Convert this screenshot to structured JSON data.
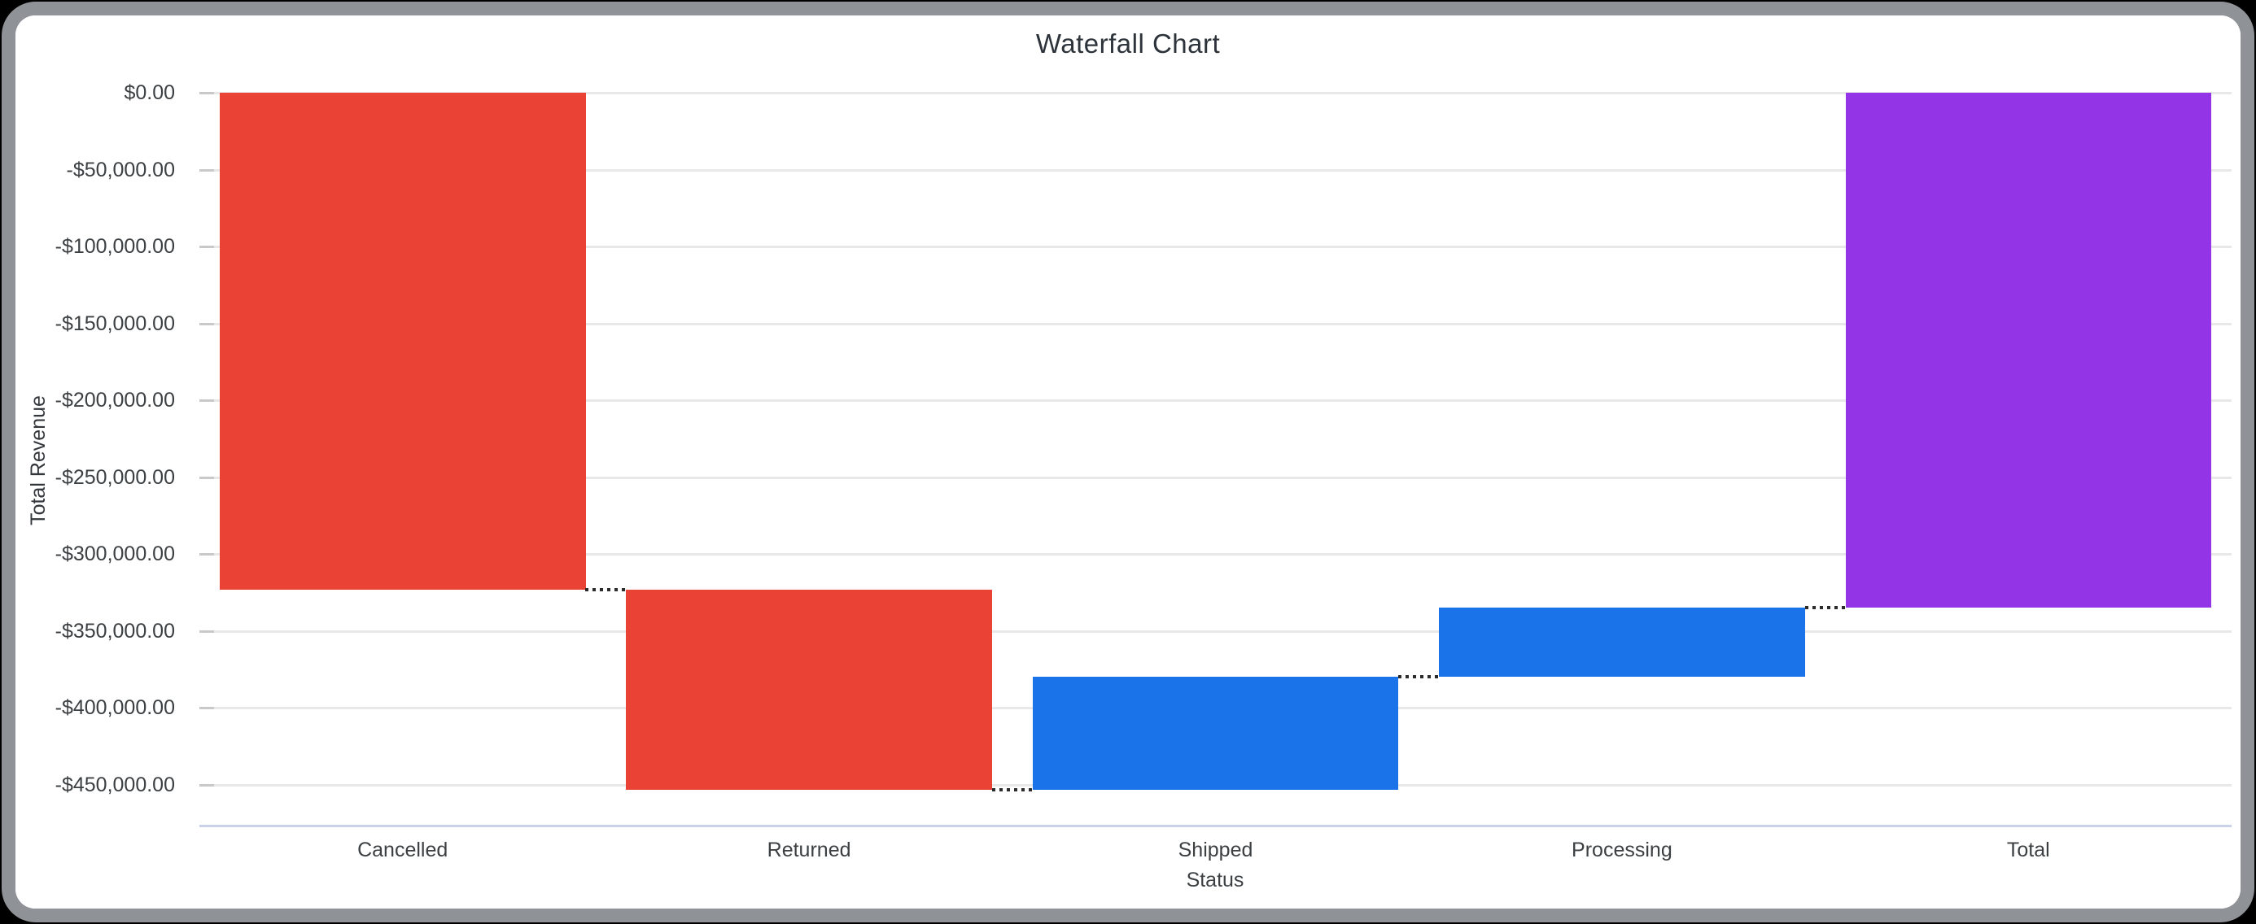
{
  "window_title": "Waterfall Chart",
  "chart": {
    "title": "Waterfall Chart",
    "x_axis_title": "Status",
    "y_axis_title": "Total Revenue"
  },
  "chart_data": {
    "type": "waterfall",
    "title": "Waterfall Chart",
    "xlabel": "Status",
    "ylabel": "Total Revenue",
    "categories": [
      "Cancelled",
      "Returned",
      "Shipped",
      "Processing",
      "Total"
    ],
    "bars": [
      {
        "label": "Cancelled",
        "delta": -323000,
        "start": 0,
        "end": -323000,
        "kind": "decrease",
        "color": "#EA4335"
      },
      {
        "label": "Returned",
        "delta": -130300,
        "start": -323000,
        "end": -453300,
        "kind": "decrease",
        "color": "#EA4335"
      },
      {
        "label": "Shipped",
        "delta": 73400,
        "start": -453300,
        "end": -379900,
        "kind": "increase",
        "color": "#1A73E8"
      },
      {
        "label": "Processing",
        "delta": 45400,
        "start": -379900,
        "end": -334500,
        "kind": "increase",
        "color": "#1A73E8"
      },
      {
        "label": "Total",
        "delta": -334500,
        "start": 0,
        "end": -334500,
        "kind": "total",
        "color": "#9334E6"
      }
    ],
    "y_ticks": [
      {
        "value": 0,
        "label": "$0.00"
      },
      {
        "value": -50000,
        "label": "-$50,000.00"
      },
      {
        "value": -100000,
        "label": "-$100,000.00"
      },
      {
        "value": -150000,
        "label": "-$150,000.00"
      },
      {
        "value": -200000,
        "label": "-$200,000.00"
      },
      {
        "value": -250000,
        "label": "-$250,000.00"
      },
      {
        "value": -300000,
        "label": "-$300,000.00"
      },
      {
        "value": -350000,
        "label": "-$350,000.00"
      },
      {
        "value": -400000,
        "label": "-$400,000.00"
      },
      {
        "value": -450000,
        "label": "-$450,000.00"
      }
    ],
    "ylim": [
      -476500,
      0
    ],
    "grid": true,
    "legend": false,
    "connector_style": "dotted",
    "colors": {
      "decrease": "#EA4335",
      "increase": "#1A73E8",
      "total": "#9334E6",
      "gridline": "#e8e8e8",
      "axis_baseline": "#c9d1e8",
      "connector": "#2b2b2b",
      "tick_text": "#3c4043",
      "title_text": "#2d333a"
    }
  }
}
